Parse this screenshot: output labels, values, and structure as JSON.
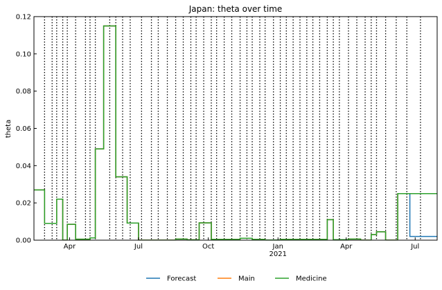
{
  "chart_data": {
    "type": "line",
    "title": "Japan: theta over time",
    "xlabel": "",
    "ylabel": "theta",
    "x_ticks": [
      {
        "date": "2020-04-01",
        "label": "Apr",
        "sub": ""
      },
      {
        "date": "2020-07-01",
        "label": "Jul",
        "sub": ""
      },
      {
        "date": "2020-10-01",
        "label": "Oct",
        "sub": ""
      },
      {
        "date": "2021-01-01",
        "label": "Jan",
        "sub": "2021"
      },
      {
        "date": "2021-04-01",
        "label": "Apr",
        "sub": ""
      },
      {
        "date": "2021-07-01",
        "label": "Jul",
        "sub": ""
      }
    ],
    "xlim": [
      "2020-02-14",
      "2021-07-30"
    ],
    "ylim": [
      0,
      0.12
    ],
    "y_ticks": [
      "0.00",
      "0.02",
      "0.04",
      "0.06",
      "0.08",
      "0.10",
      "0.12"
    ],
    "change_points": [
      "2020-02-28",
      "2020-03-09",
      "2020-03-15",
      "2020-03-23",
      "2020-03-29",
      "2020-04-09",
      "2020-04-22",
      "2020-04-28",
      "2020-05-05",
      "2020-05-24",
      "2020-06-01",
      "2020-06-10",
      "2020-06-20",
      "2020-07-05",
      "2020-07-18",
      "2020-07-27",
      "2020-08-08",
      "2020-08-19",
      "2020-08-29",
      "2020-09-08",
      "2020-09-15",
      "2020-09-25",
      "2020-10-05",
      "2020-10-12",
      "2020-10-22",
      "2020-11-01",
      "2020-11-12",
      "2020-11-21",
      "2020-11-28",
      "2020-12-08",
      "2020-12-15",
      "2020-12-26",
      "2021-01-04",
      "2021-01-12",
      "2021-01-21",
      "2021-01-30",
      "2021-02-08",
      "2021-02-16",
      "2021-02-25",
      "2021-03-07",
      "2021-03-15",
      "2021-03-23",
      "2021-04-04",
      "2021-04-15",
      "2021-04-26",
      "2021-05-04",
      "2021-05-11",
      "2021-05-23",
      "2021-06-06",
      "2021-06-20",
      "2021-07-08"
    ],
    "series": [
      {
        "name": "Forecast",
        "color": "#1f77b4",
        "points": [
          [
            "2020-02-14",
            0.027
          ],
          [
            "2020-02-28",
            0.009
          ],
          [
            "2020-03-15",
            0.022
          ],
          [
            "2020-03-23",
            0.0
          ],
          [
            "2020-03-29",
            0.0085
          ],
          [
            "2020-04-09",
            0.0005
          ],
          [
            "2020-04-28",
            0.0012
          ],
          [
            "2020-05-05",
            0.049
          ],
          [
            "2020-05-16",
            0.115
          ],
          [
            "2020-06-01",
            0.034
          ],
          [
            "2020-06-16",
            0.0092
          ],
          [
            "2020-07-01",
            0.0
          ],
          [
            "2020-08-19",
            0.0006
          ],
          [
            "2020-09-03",
            0.0002
          ],
          [
            "2020-09-19",
            0.0093
          ],
          [
            "2020-10-05",
            0.0004
          ],
          [
            "2020-11-12",
            0.001
          ],
          [
            "2020-11-28",
            0.0004
          ],
          [
            "2020-12-15",
            0.0001
          ],
          [
            "2021-01-04",
            0.0004
          ],
          [
            "2021-03-07",
            0.011
          ],
          [
            "2021-03-15",
            0.0003
          ],
          [
            "2021-04-04",
            0.0006
          ],
          [
            "2021-04-20",
            0.0
          ],
          [
            "2021-05-04",
            0.003
          ],
          [
            "2021-05-11",
            0.0045
          ],
          [
            "2021-05-23",
            0.0
          ],
          [
            "2021-06-08",
            0.025
          ],
          [
            "2021-06-24",
            0.002
          ],
          [
            "2021-07-30",
            0.002
          ]
        ]
      },
      {
        "name": "Main",
        "color": "#ff7f0e",
        "points": [
          [
            "2020-02-14",
            0.027
          ],
          [
            "2020-02-28",
            0.009
          ],
          [
            "2020-03-15",
            0.022
          ],
          [
            "2020-03-23",
            0.0
          ],
          [
            "2020-03-29",
            0.0085
          ],
          [
            "2020-04-09",
            0.0005
          ],
          [
            "2020-04-28",
            0.0012
          ],
          [
            "2020-05-05",
            0.049
          ],
          [
            "2020-05-16",
            0.115
          ],
          [
            "2020-06-01",
            0.034
          ],
          [
            "2020-06-16",
            0.0092
          ],
          [
            "2020-07-01",
            0.0
          ],
          [
            "2020-08-19",
            0.0006
          ],
          [
            "2020-09-03",
            0.0002
          ],
          [
            "2020-09-19",
            0.0093
          ],
          [
            "2020-10-05",
            0.0004
          ],
          [
            "2020-11-12",
            0.001
          ],
          [
            "2020-11-28",
            0.0004
          ],
          [
            "2020-12-15",
            0.0001
          ],
          [
            "2021-01-04",
            0.0004
          ],
          [
            "2021-03-07",
            0.011
          ],
          [
            "2021-03-15",
            0.0003
          ],
          [
            "2021-04-04",
            0.0006
          ],
          [
            "2021-04-20",
            0.0
          ],
          [
            "2021-05-04",
            0.003
          ],
          [
            "2021-05-11",
            0.0045
          ],
          [
            "2021-05-23",
            0.0
          ],
          [
            "2021-06-08",
            0.025
          ],
          [
            "2021-07-30",
            0.025
          ]
        ]
      },
      {
        "name": "Medicine",
        "color": "#2ca02c",
        "points": [
          [
            "2020-02-14",
            0.027
          ],
          [
            "2020-02-28",
            0.009
          ],
          [
            "2020-03-15",
            0.022
          ],
          [
            "2020-03-23",
            0.0
          ],
          [
            "2020-03-29",
            0.0085
          ],
          [
            "2020-04-09",
            0.0005
          ],
          [
            "2020-04-28",
            0.0012
          ],
          [
            "2020-05-05",
            0.049
          ],
          [
            "2020-05-16",
            0.115
          ],
          [
            "2020-06-01",
            0.034
          ],
          [
            "2020-06-16",
            0.0092
          ],
          [
            "2020-07-01",
            0.0
          ],
          [
            "2020-08-19",
            0.0006
          ],
          [
            "2020-09-03",
            0.0002
          ],
          [
            "2020-09-19",
            0.0093
          ],
          [
            "2020-10-05",
            0.0004
          ],
          [
            "2020-11-12",
            0.001
          ],
          [
            "2020-11-28",
            0.0004
          ],
          [
            "2020-12-15",
            0.0001
          ],
          [
            "2021-01-04",
            0.0004
          ],
          [
            "2021-03-07",
            0.011
          ],
          [
            "2021-03-15",
            0.0003
          ],
          [
            "2021-04-04",
            0.0006
          ],
          [
            "2021-04-20",
            0.0
          ],
          [
            "2021-05-04",
            0.003
          ],
          [
            "2021-05-11",
            0.0045
          ],
          [
            "2021-05-23",
            0.0
          ],
          [
            "2021-06-08",
            0.025
          ],
          [
            "2021-07-30",
            0.025
          ]
        ]
      }
    ],
    "legend": [
      "Forecast",
      "Main",
      "Medicine"
    ],
    "legend_position": "bottom-center",
    "grid": false
  }
}
